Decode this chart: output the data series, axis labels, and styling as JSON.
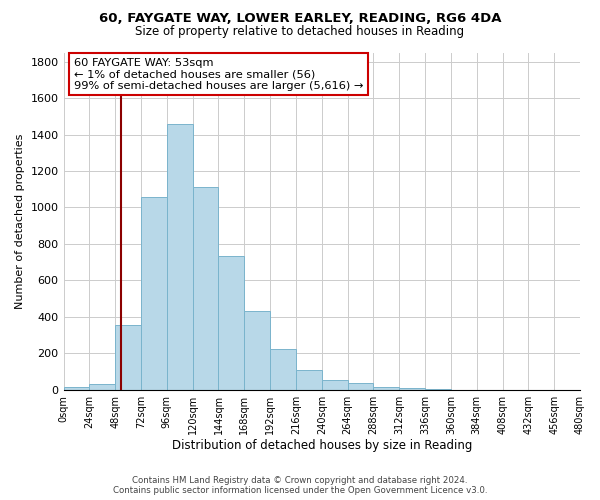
{
  "title_line1": "60, FAYGATE WAY, LOWER EARLEY, READING, RG6 4DA",
  "title_line2": "Size of property relative to detached houses in Reading",
  "xlabel": "Distribution of detached houses by size in Reading",
  "ylabel": "Number of detached properties",
  "bin_edges": [
    0,
    24,
    48,
    72,
    96,
    120,
    144,
    168,
    192,
    216,
    240,
    264,
    288,
    312,
    336,
    360,
    384,
    408,
    432,
    456,
    480
  ],
  "bar_heights": [
    15,
    30,
    355,
    1060,
    1460,
    1110,
    735,
    430,
    225,
    110,
    55,
    40,
    15,
    10,
    2,
    0,
    0,
    0,
    0,
    0
  ],
  "bar_color": "#b8d8e8",
  "bar_edge_color": "#7ab4cc",
  "vline_x": 53,
  "vline_color": "#8b0000",
  "annotation_title": "60 FAYGATE WAY: 53sqm",
  "annotation_line1": "← 1% of detached houses are smaller (56)",
  "annotation_line2": "99% of semi-detached houses are larger (5,616) →",
  "annotation_box_color": "white",
  "annotation_box_edge_color": "#cc0000",
  "ylim": [
    0,
    1850
  ],
  "yticks": [
    0,
    200,
    400,
    600,
    800,
    1000,
    1200,
    1400,
    1600,
    1800
  ],
  "xtick_labels": [
    "0sqm",
    "24sqm",
    "48sqm",
    "72sqm",
    "96sqm",
    "120sqm",
    "144sqm",
    "168sqm",
    "192sqm",
    "216sqm",
    "240sqm",
    "264sqm",
    "288sqm",
    "312sqm",
    "336sqm",
    "360sqm",
    "384sqm",
    "408sqm",
    "432sqm",
    "456sqm",
    "480sqm"
  ],
  "footer_line1": "Contains HM Land Registry data © Crown copyright and database right 2024.",
  "footer_line2": "Contains public sector information licensed under the Open Government Licence v3.0.",
  "bg_color": "#ffffff",
  "grid_color": "#cccccc"
}
